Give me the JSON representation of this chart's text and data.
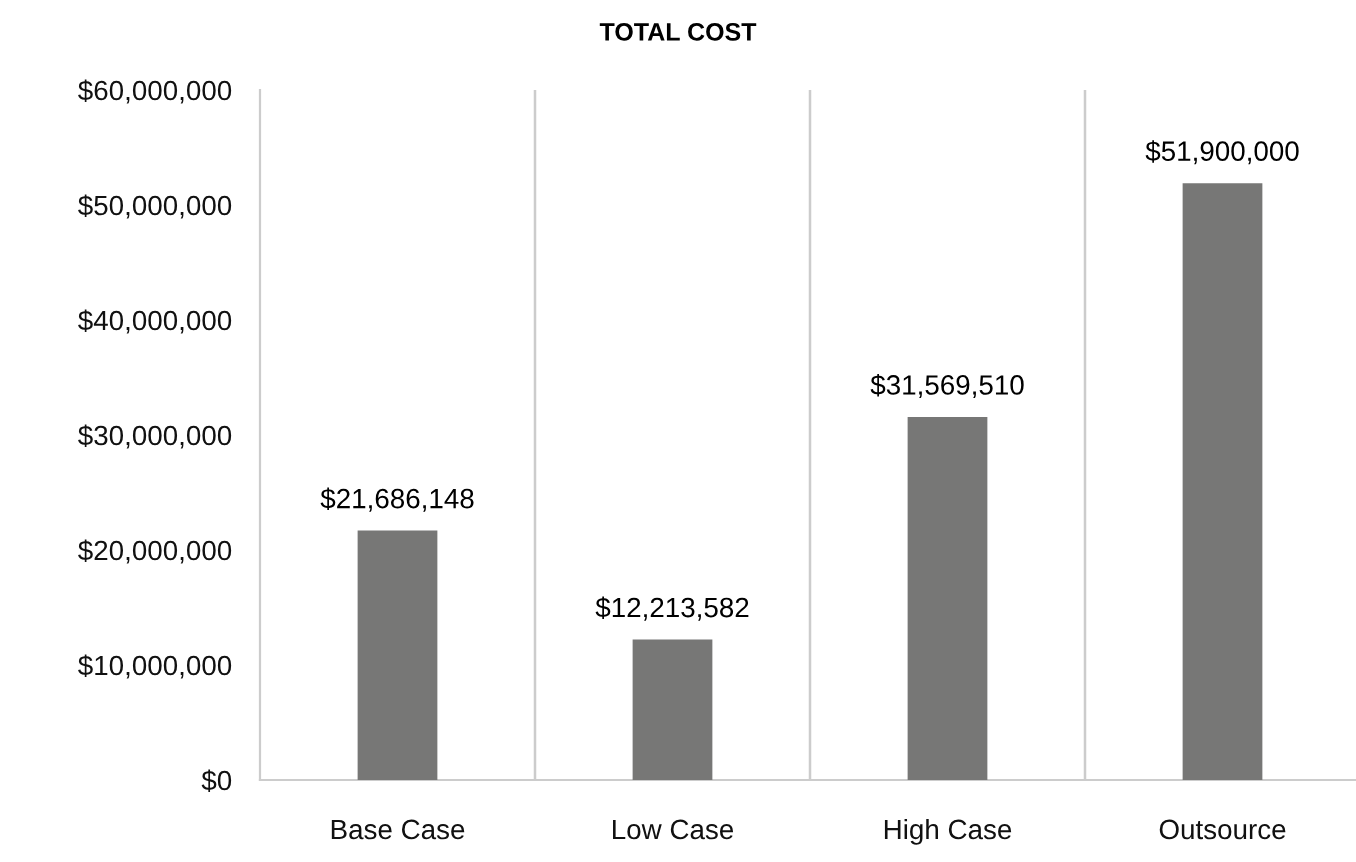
{
  "chart_data": {
    "type": "bar",
    "title": "TOTAL COST",
    "categories": [
      "Base Case",
      "Low Case",
      "High Case",
      "Outsource"
    ],
    "values": [
      21686148,
      12213582,
      31569510,
      51900000
    ],
    "value_labels": [
      "$21,686,148",
      "$12,213,582",
      "$31,569,510",
      "$51,900,000"
    ],
    "color": "#777776",
    "ylim": [
      0,
      60000000
    ],
    "yticks": [
      {
        "value": 0,
        "label": "$0"
      },
      {
        "value": 10000000,
        "label": "$10,000,000"
      },
      {
        "value": 20000000,
        "label": "$20,000,000"
      },
      {
        "value": 30000000,
        "label": "$30,000,000"
      },
      {
        "value": 40000000,
        "label": "$40,000,000"
      },
      {
        "value": 50000000,
        "label": "$50,000,000"
      },
      {
        "value": 60000000,
        "label": "$60,000,000"
      }
    ],
    "grid": "x",
    "legend": false
  }
}
